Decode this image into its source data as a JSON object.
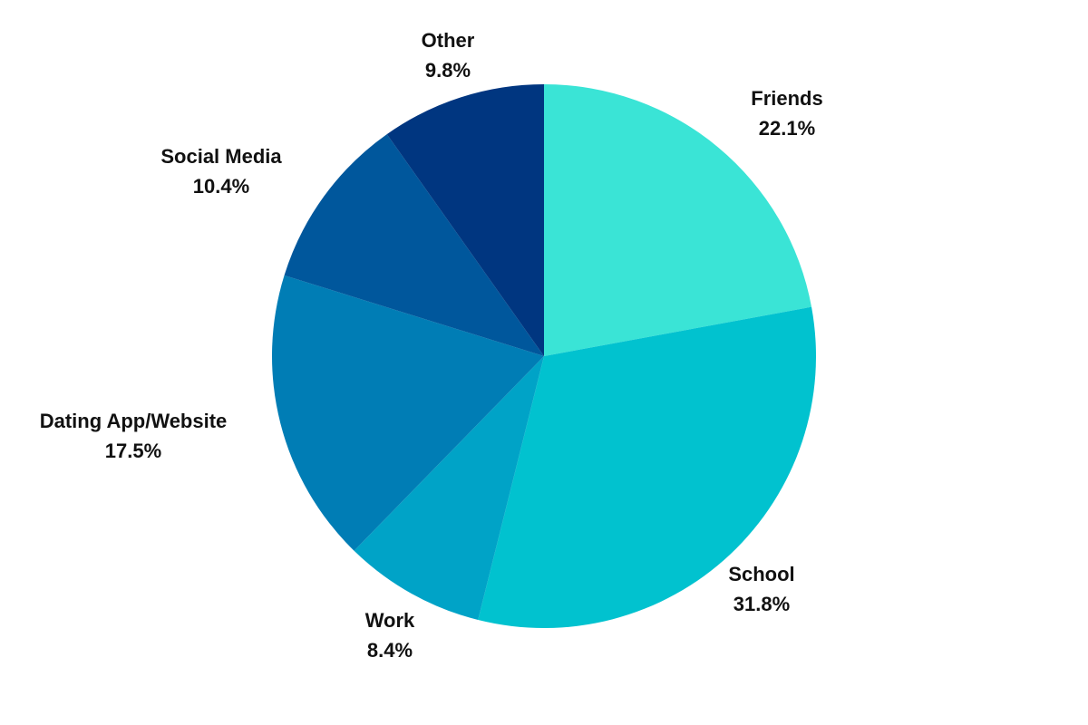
{
  "chart_data": {
    "type": "pie",
    "title": "",
    "start": "12 o'clock",
    "direction": "clockwise",
    "slices": [
      {
        "label": "Friends",
        "value": 22.1,
        "value_label": "22.1%",
        "color": "#3ae4d6"
      },
      {
        "label": "School",
        "value": 31.8,
        "value_label": "31.8%",
        "color": "#01c2cf"
      },
      {
        "label": "Work",
        "value": 8.4,
        "value_label": "8.4%",
        "color": "#00a3c7"
      },
      {
        "label": "Dating App/Website",
        "value": 17.5,
        "value_label": "17.5%",
        "color": "#007db5"
      },
      {
        "label": "Social Media",
        "value": 10.4,
        "value_label": "10.4%",
        "color": "#00579c"
      },
      {
        "label": "Other",
        "value": 9.8,
        "value_label": "9.8%",
        "color": "#003680"
      }
    ]
  }
}
